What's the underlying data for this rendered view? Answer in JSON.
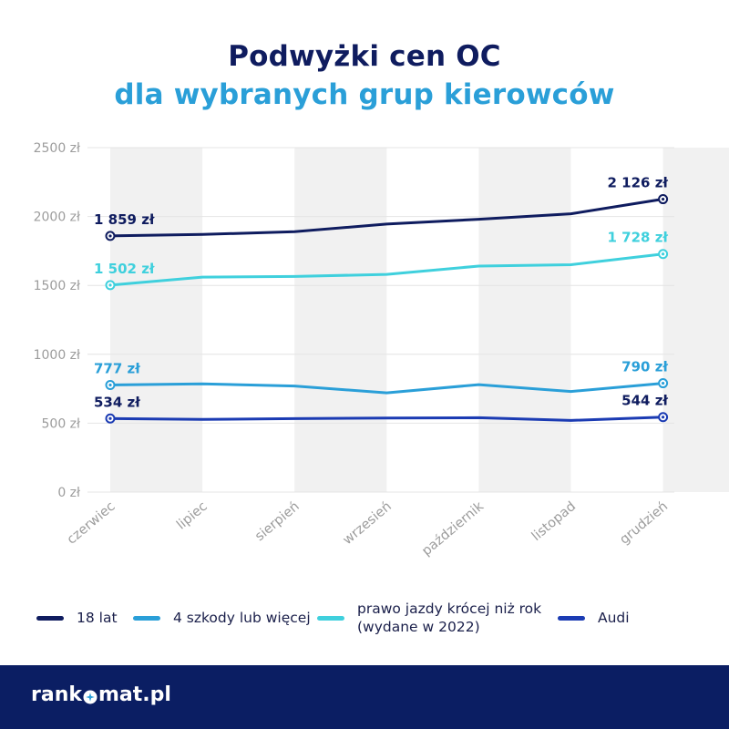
{
  "title": {
    "line1": "Podwyżki cen OC",
    "line2": "dla wybranych grup kierowców"
  },
  "colors": {
    "title_dark": "#0f1c5f",
    "title_light": "#2a9fd8",
    "footer_bg": "#0b1e63"
  },
  "chart_data": {
    "type": "line",
    "categories": [
      "czerwiec",
      "lipiec",
      "sierpień",
      "wrzesień",
      "październik",
      "listopad",
      "grudzień"
    ],
    "y_ticks": [
      "0 zł",
      "500 zł",
      "1000 zł",
      "1500 zł",
      "2000 zł",
      "2500 zł"
    ],
    "ylim": [
      0,
      2500
    ],
    "grid": true,
    "legend_position": "bottom",
    "series": [
      {
        "name": "18 lat",
        "color": "#0f1c5f",
        "values": [
          1859,
          1870,
          1890,
          1945,
          1980,
          2020,
          2126
        ],
        "labels": {
          "first": "1 859 zł",
          "last": "2 126 zł"
        },
        "label_color": "#0f1c5f"
      },
      {
        "name": "4 szkody lub więcej",
        "color": "#2a9fd8",
        "values": [
          777,
          785,
          770,
          720,
          780,
          730,
          790
        ],
        "labels": {
          "first": "777 zł",
          "last": "790 zł"
        },
        "label_color": "#2a9fd8"
      },
      {
        "name": "prawo jazdy krócej niż rok\n(wydane w 2022)",
        "color": "#3fd0dd",
        "values": [
          1502,
          1560,
          1565,
          1580,
          1640,
          1650,
          1728
        ],
        "labels": {
          "first": "1 502 zł",
          "last": "1 728 zł"
        },
        "label_color": "#3fd0dd"
      },
      {
        "name": "Audi",
        "color": "#1b3bb3",
        "values": [
          534,
          528,
          533,
          537,
          540,
          520,
          544
        ],
        "labels": {
          "first": "534 zł",
          "last": "544 zł"
        },
        "label_color": "#0f1c5f"
      }
    ]
  },
  "footer": {
    "logo_part1": "rank",
    "logo_part2": "mat.pl"
  }
}
